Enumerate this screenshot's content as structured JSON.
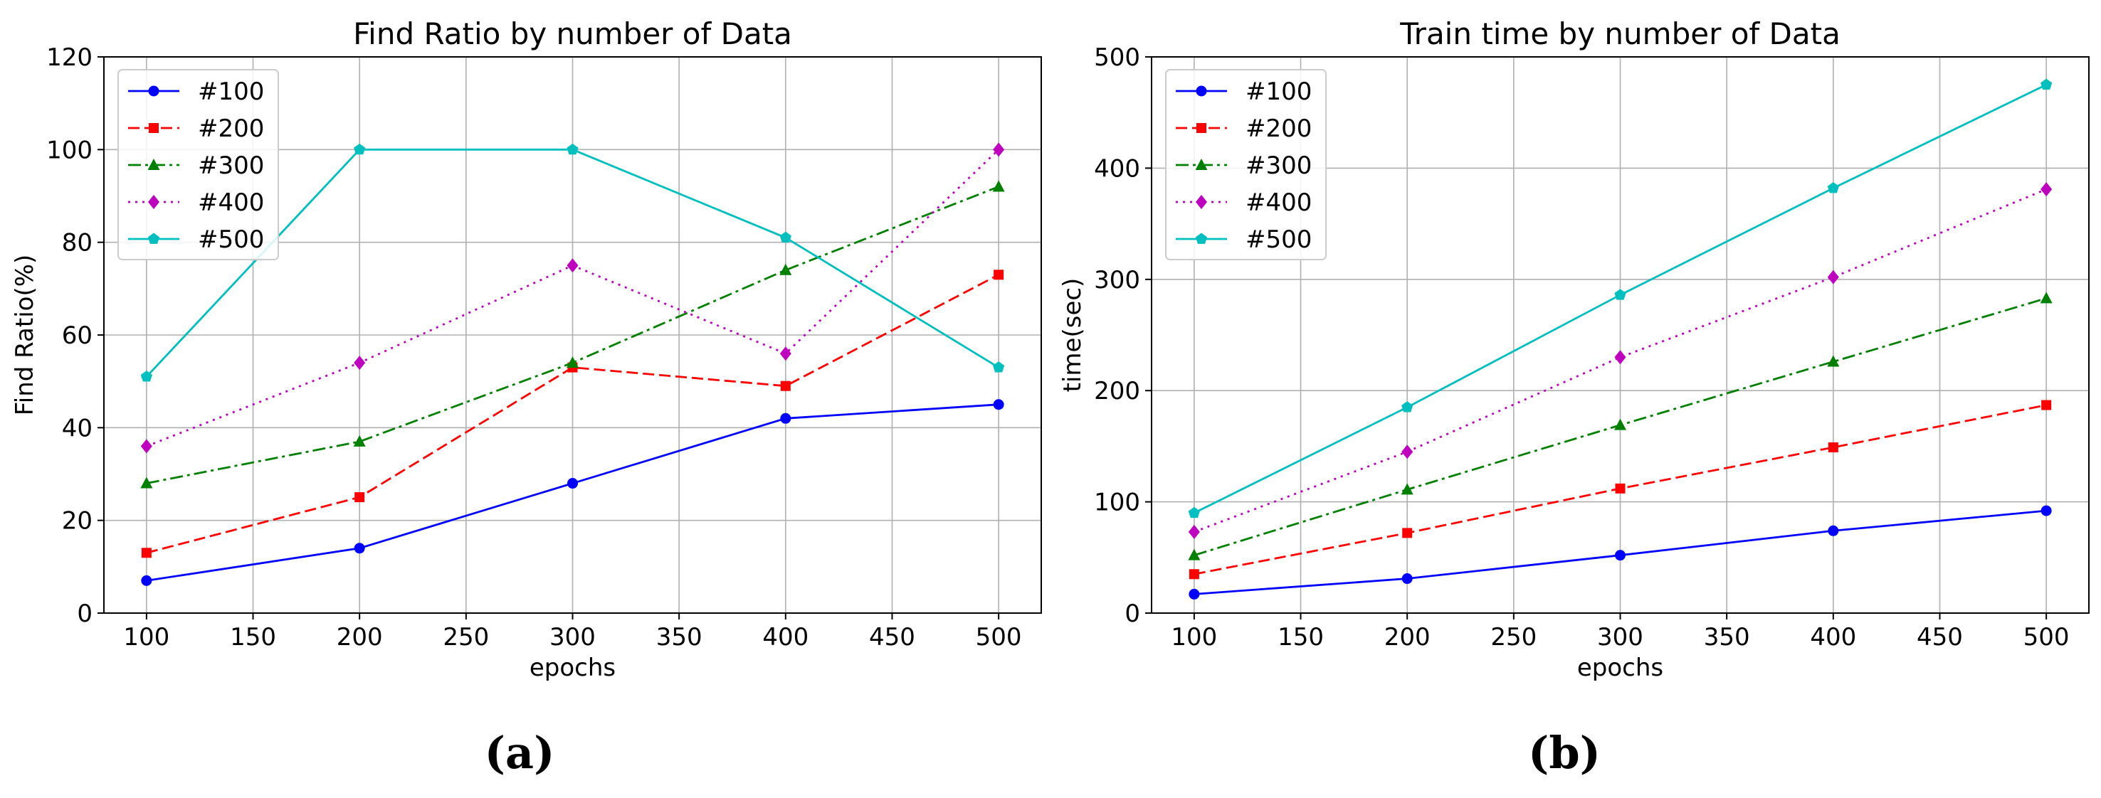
{
  "chart_data": [
    {
      "type": "line",
      "title": "Find Ratio by number of Data",
      "xlabel": "epochs",
      "ylabel": "Find Ratio(%)",
      "caption": "(a)",
      "x": [
        100,
        200,
        300,
        400,
        500
      ],
      "xlim": [
        80,
        520
      ],
      "ylim": [
        0,
        120
      ],
      "xticks": [
        100,
        150,
        200,
        250,
        300,
        350,
        400,
        450,
        500
      ],
      "yticks": [
        0,
        20,
        40,
        60,
        80,
        100,
        120
      ],
      "grid": true,
      "legend_position": "top-left",
      "series": [
        {
          "name": "#100",
          "values": [
            7,
            14,
            28,
            42,
            45
          ],
          "color": "#0000ff",
          "dash": "solid",
          "marker": "circle"
        },
        {
          "name": "#200",
          "values": [
            13,
            25,
            53,
            49,
            73
          ],
          "color": "#ff0000",
          "dash": "dashed",
          "marker": "square"
        },
        {
          "name": "#300",
          "values": [
            28,
            37,
            54,
            74,
            92
          ],
          "color": "#008000",
          "dash": "dashdot",
          "marker": "triangle"
        },
        {
          "name": "#400",
          "values": [
            36,
            54,
            75,
            56,
            100
          ],
          "color": "#bf00bf",
          "dash": "dotted",
          "marker": "diamond"
        },
        {
          "name": "#500",
          "values": [
            51,
            100,
            100,
            81,
            53
          ],
          "color": "#00bfbf",
          "dash": "solid",
          "marker": "pentagon"
        }
      ]
    },
    {
      "type": "line",
      "title": "Train time by number of Data",
      "xlabel": "epochs",
      "ylabel": "time(sec)",
      "caption": "(b)",
      "x": [
        100,
        200,
        300,
        400,
        500
      ],
      "xlim": [
        80,
        520
      ],
      "ylim": [
        0,
        500
      ],
      "xticks": [
        100,
        150,
        200,
        250,
        300,
        350,
        400,
        450,
        500
      ],
      "yticks": [
        0,
        100,
        200,
        300,
        400,
        500
      ],
      "grid": true,
      "legend_position": "top-left",
      "series": [
        {
          "name": "#100",
          "values": [
            17,
            31,
            52,
            74,
            92
          ],
          "color": "#0000ff",
          "dash": "solid",
          "marker": "circle"
        },
        {
          "name": "#200",
          "values": [
            35,
            72,
            112,
            149,
            187
          ],
          "color": "#ff0000",
          "dash": "dashed",
          "marker": "square"
        },
        {
          "name": "#300",
          "values": [
            52,
            111,
            169,
            226,
            283
          ],
          "color": "#008000",
          "dash": "dashdot",
          "marker": "triangle"
        },
        {
          "name": "#400",
          "values": [
            73,
            145,
            230,
            302,
            381
          ],
          "color": "#bf00bf",
          "dash": "dotted",
          "marker": "diamond"
        },
        {
          "name": "#500",
          "values": [
            90,
            185,
            286,
            382,
            475
          ],
          "color": "#00bfbf",
          "dash": "solid",
          "marker": "pentagon"
        }
      ]
    }
  ]
}
